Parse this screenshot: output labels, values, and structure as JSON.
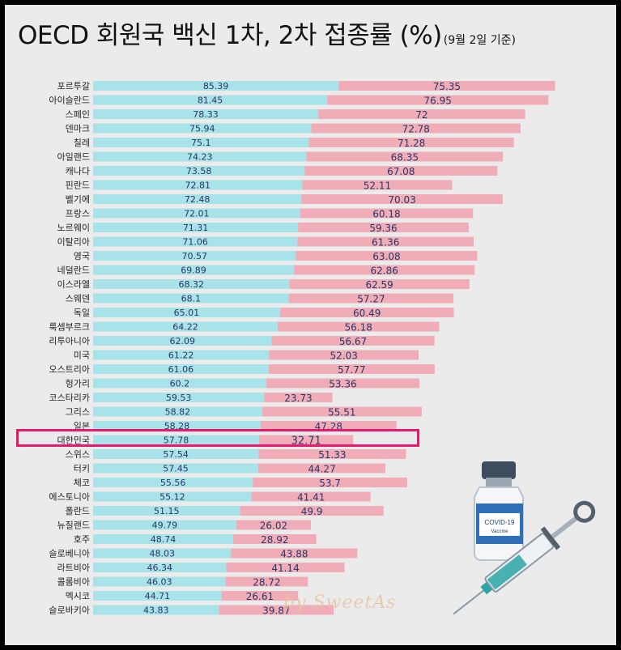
{
  "title": "OECD 회원국 백신 1차, 2차 접종률 (%)",
  "subtitle": "(9월 2일 기준)",
  "highlight_country": "대한민국",
  "watermark": "by SweetAs",
  "vaccine_label": "COVID-19",
  "vaccine_sublabel": "Vaccine",
  "colors": {
    "dose1": "#a8e3ea",
    "dose2": "#f0adb8",
    "highlight": "#e8196e",
    "value_text": "#2a3566"
  },
  "chart_data": {
    "type": "bar",
    "title": "OECD 회원국 백신 1차, 2차 접종률 (%)",
    "xlabel": "",
    "ylabel": "",
    "categories": [
      "포르투갈",
      "아이슬란드",
      "스페인",
      "덴마크",
      "칠레",
      "아일랜드",
      "캐나다",
      "핀란드",
      "벨기에",
      "프랑스",
      "노르웨이",
      "이탈리아",
      "영국",
      "네덜란드",
      "이스라엘",
      "스웨덴",
      "독일",
      "룩셈부르크",
      "리투아니아",
      "미국",
      "오스트리아",
      "헝가리",
      "코스타리카",
      "그리스",
      "일본",
      "대한민국",
      "스위스",
      "터키",
      "체코",
      "에스토니아",
      "폴란드",
      "뉴질랜드",
      "호주",
      "슬로베니아",
      "라트비아",
      "콜롬비아",
      "멕시코",
      "슬로바키아"
    ],
    "series": [
      {
        "name": "1차",
        "values": [
          85.39,
          81.45,
          78.33,
          75.94,
          75.1,
          74.23,
          73.58,
          72.81,
          72.48,
          72.01,
          71.31,
          71.06,
          70.57,
          69.89,
          68.32,
          68.1,
          65.01,
          64.22,
          62.09,
          61.22,
          61.06,
          60.2,
          59.53,
          58.82,
          58.28,
          57.78,
          57.54,
          57.45,
          55.56,
          55.12,
          51.15,
          49.79,
          48.74,
          48.03,
          46.34,
          46.03,
          44.71,
          43.83
        ]
      },
      {
        "name": "2차",
        "values": [
          75.35,
          76.95,
          72,
          72.78,
          71.28,
          68.35,
          67.08,
          52.11,
          70.03,
          60.18,
          59.36,
          61.36,
          63.08,
          62.86,
          62.59,
          57.27,
          60.49,
          56.18,
          56.67,
          52.03,
          57.77,
          53.36,
          23.73,
          55.51,
          47.28,
          32.71,
          51.33,
          44.27,
          53.7,
          41.41,
          49.9,
          26.02,
          28.92,
          43.88,
          41.14,
          28.72,
          26.61,
          39.87
        ]
      }
    ],
    "labels": {
      "dose1": [
        "85.39",
        "81.45",
        "78.33",
        "75.94",
        "75.1",
        "74.23",
        "73.58",
        "72.81",
        "72.48",
        "72.01",
        "71.31",
        "71.06",
        "70.57",
        "69.89",
        "68.32",
        "68.1",
        "65.01",
        "64.22",
        "62.09",
        "61.22",
        "61.06",
        "60.2",
        "59.53",
        "58.82",
        "58.28",
        "57.78",
        "57.54",
        "57.45",
        "55.56",
        "55.12",
        "51.15",
        "49.79",
        "48.74",
        "48.03",
        "46.34",
        "46.03",
        "44.71",
        "43.83"
      ],
      "dose2": [
        "75.35",
        "76.95",
        "72",
        "72.78",
        "71.28",
        "68.35",
        "67.08",
        "52.11",
        "70.03",
        "60.18",
        "59.36",
        "61.36",
        "63.08",
        "62.86",
        "62.59",
        "57.27",
        "60.49",
        "56.18",
        "56.67",
        "52.03",
        "57.77",
        "53.36",
        "23.73",
        "55.51",
        "47.28",
        "32.71",
        "51.33",
        "44.27",
        "53.7",
        "41.41",
        "49.9",
        "26.02",
        "28.92",
        "43.88",
        "41.14",
        "28.72",
        "26.61",
        "39.87"
      ]
    }
  }
}
